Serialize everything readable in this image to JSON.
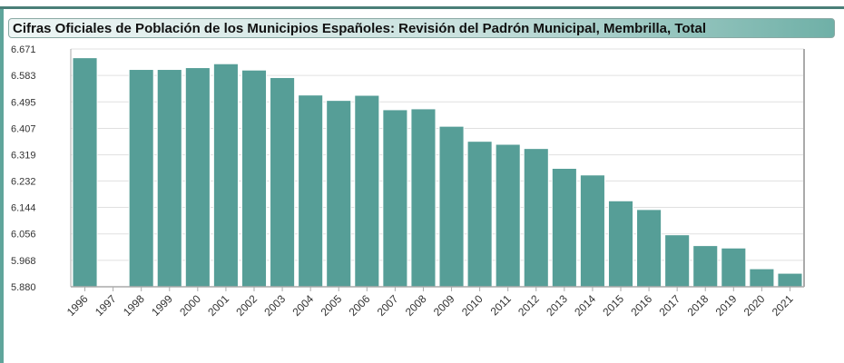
{
  "header": {
    "title": "Cifras Oficiales de Población de los Municipios Españoles: Revisión del Padrón Municipal, Membrilla, Total"
  },
  "colors": {
    "bar": "#569e97",
    "bar_stroke": "#ffffff",
    "grid": "#e0e0e0",
    "axis": "#aaaaaa",
    "accent": "#4a7f78"
  },
  "chart_data": {
    "type": "bar",
    "title": "Cifras Oficiales de Población de los Municipios Españoles: Revisión del Padrón Municipal, Membrilla, Total",
    "xlabel": "",
    "ylabel": "",
    "categories": [
      "1996",
      "1997",
      "1998",
      "1999",
      "2000",
      "2001",
      "2002",
      "2003",
      "2004",
      "2005",
      "2006",
      "2007",
      "2008",
      "2009",
      "2010",
      "2011",
      "2012",
      "2013",
      "2014",
      "2015",
      "2016",
      "2017",
      "2018",
      "2019",
      "2020",
      "2021"
    ],
    "values": [
      6642,
      null,
      6603,
      6603,
      6609,
      6622,
      6601,
      6576,
      6518,
      6500,
      6517,
      6469,
      6472,
      6414,
      6364,
      6354,
      6340,
      6274,
      6252,
      6166,
      6137,
      6053,
      6017,
      6009,
      5940,
      5925
    ],
    "ylim": [
      5880,
      6671
    ],
    "yticks": [
      "5.880",
      "5.968",
      "6.056",
      "6.144",
      "6.232",
      "6.319",
      "6.407",
      "6.495",
      "6.583",
      "6.671"
    ],
    "ytick_values": [
      5880,
      5968,
      6056,
      6144,
      6232,
      6319,
      6407,
      6495,
      6583,
      6671
    ],
    "grid": true,
    "legend": "none"
  }
}
